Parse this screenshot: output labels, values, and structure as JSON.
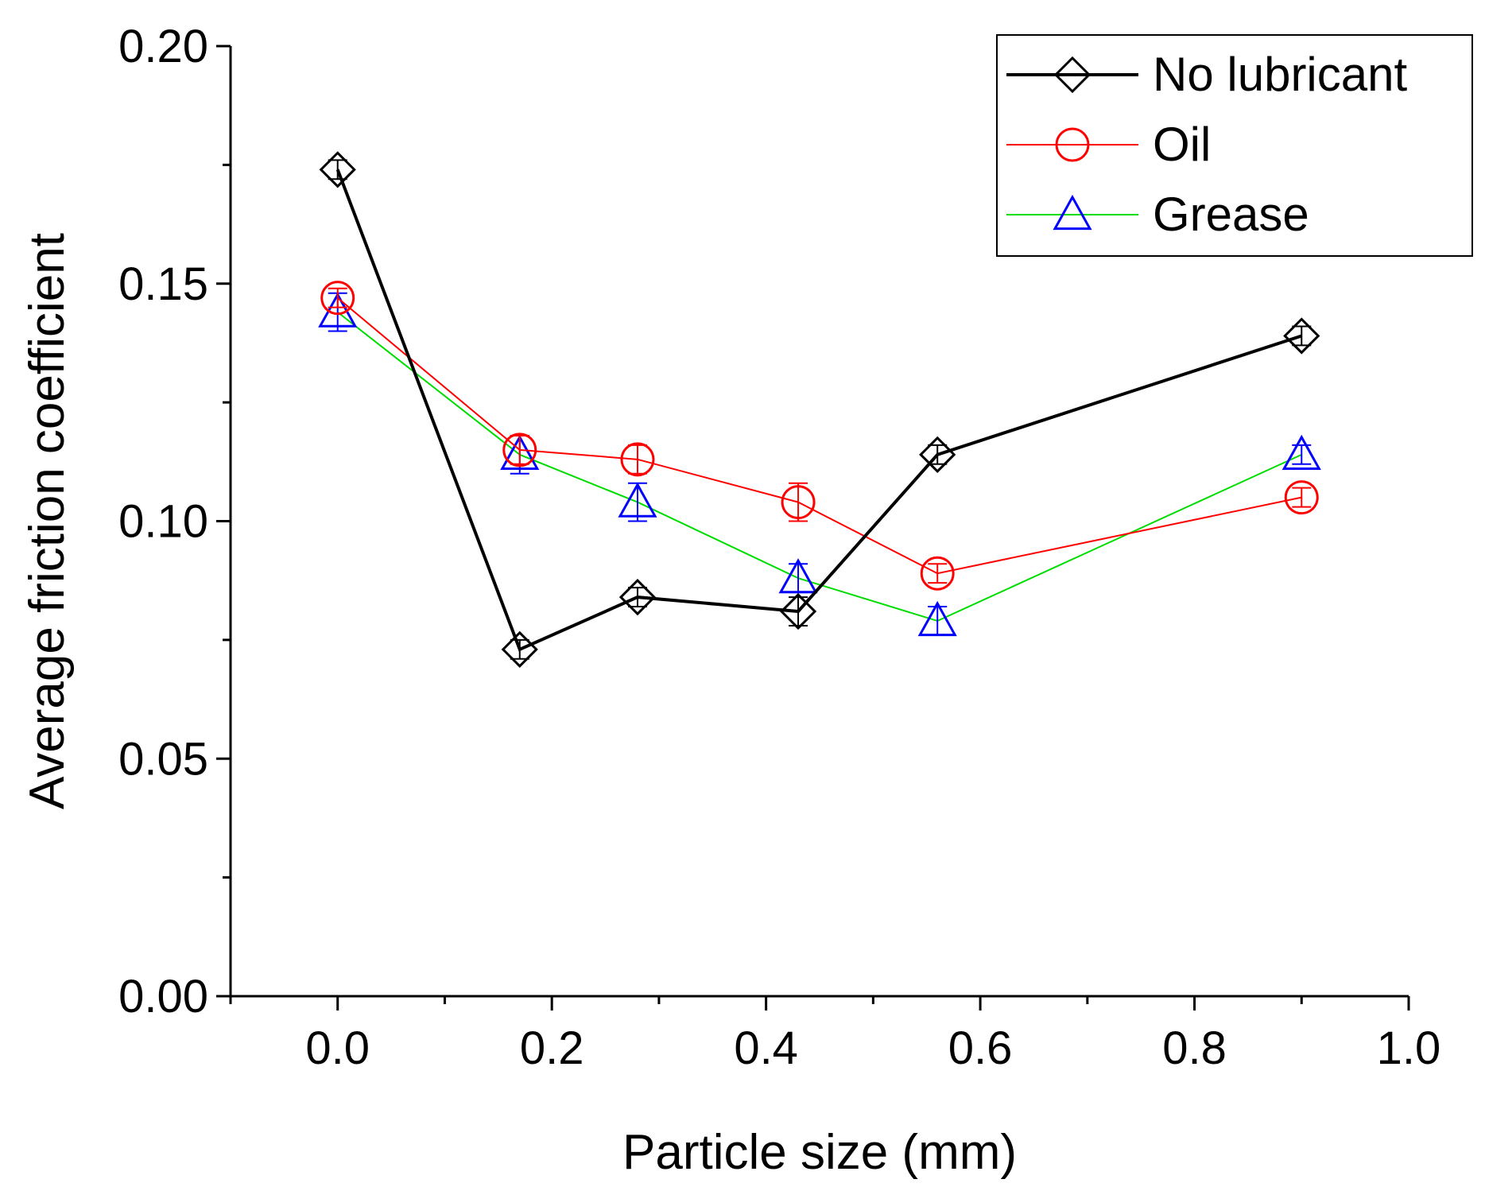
{
  "chart_data": {
    "type": "line",
    "xlabel": "Particle size (mm)",
    "ylabel": "Average friction coefficient",
    "xlim": [
      -0.1,
      1.0
    ],
    "ylim": [
      0.0,
      0.2
    ],
    "x_ticks": [
      "0.0",
      "0.2",
      "0.4",
      "0.6",
      "0.8",
      "1.0"
    ],
    "x_tick_values": [
      0.0,
      0.2,
      0.4,
      0.6,
      0.8,
      1.0
    ],
    "y_ticks": [
      "0.00",
      "0.05",
      "0.10",
      "0.15",
      "0.20"
    ],
    "y_tick_values": [
      0.0,
      0.05,
      0.1,
      0.15,
      0.2
    ],
    "grid": false,
    "legend_position": "top-right",
    "x": [
      0.0,
      0.17,
      0.28,
      0.43,
      0.56,
      0.9
    ],
    "series": [
      {
        "name": "No lubricant",
        "color": "#000000",
        "marker": "diamond",
        "values": [
          0.174,
          0.073,
          0.084,
          0.081,
          0.114,
          0.139
        ],
        "errors": [
          0.002,
          0.002,
          0.002,
          0.003,
          0.002,
          0.002
        ]
      },
      {
        "name": "Oil",
        "color": "#ff0000",
        "marker": "circle",
        "values": [
          0.147,
          0.115,
          0.113,
          0.104,
          0.089,
          0.105
        ],
        "errors": [
          0.002,
          0.003,
          0.003,
          0.004,
          0.002,
          0.002
        ]
      },
      {
        "name": "Grease",
        "color": "#0000ff",
        "marker": "triangle",
        "values": [
          0.144,
          0.114,
          0.104,
          0.088,
          0.079,
          0.114
        ],
        "errors": [
          0.004,
          0.004,
          0.004,
          0.003,
          0.003,
          0.002
        ],
        "line_color": "#00dd00"
      }
    ]
  }
}
